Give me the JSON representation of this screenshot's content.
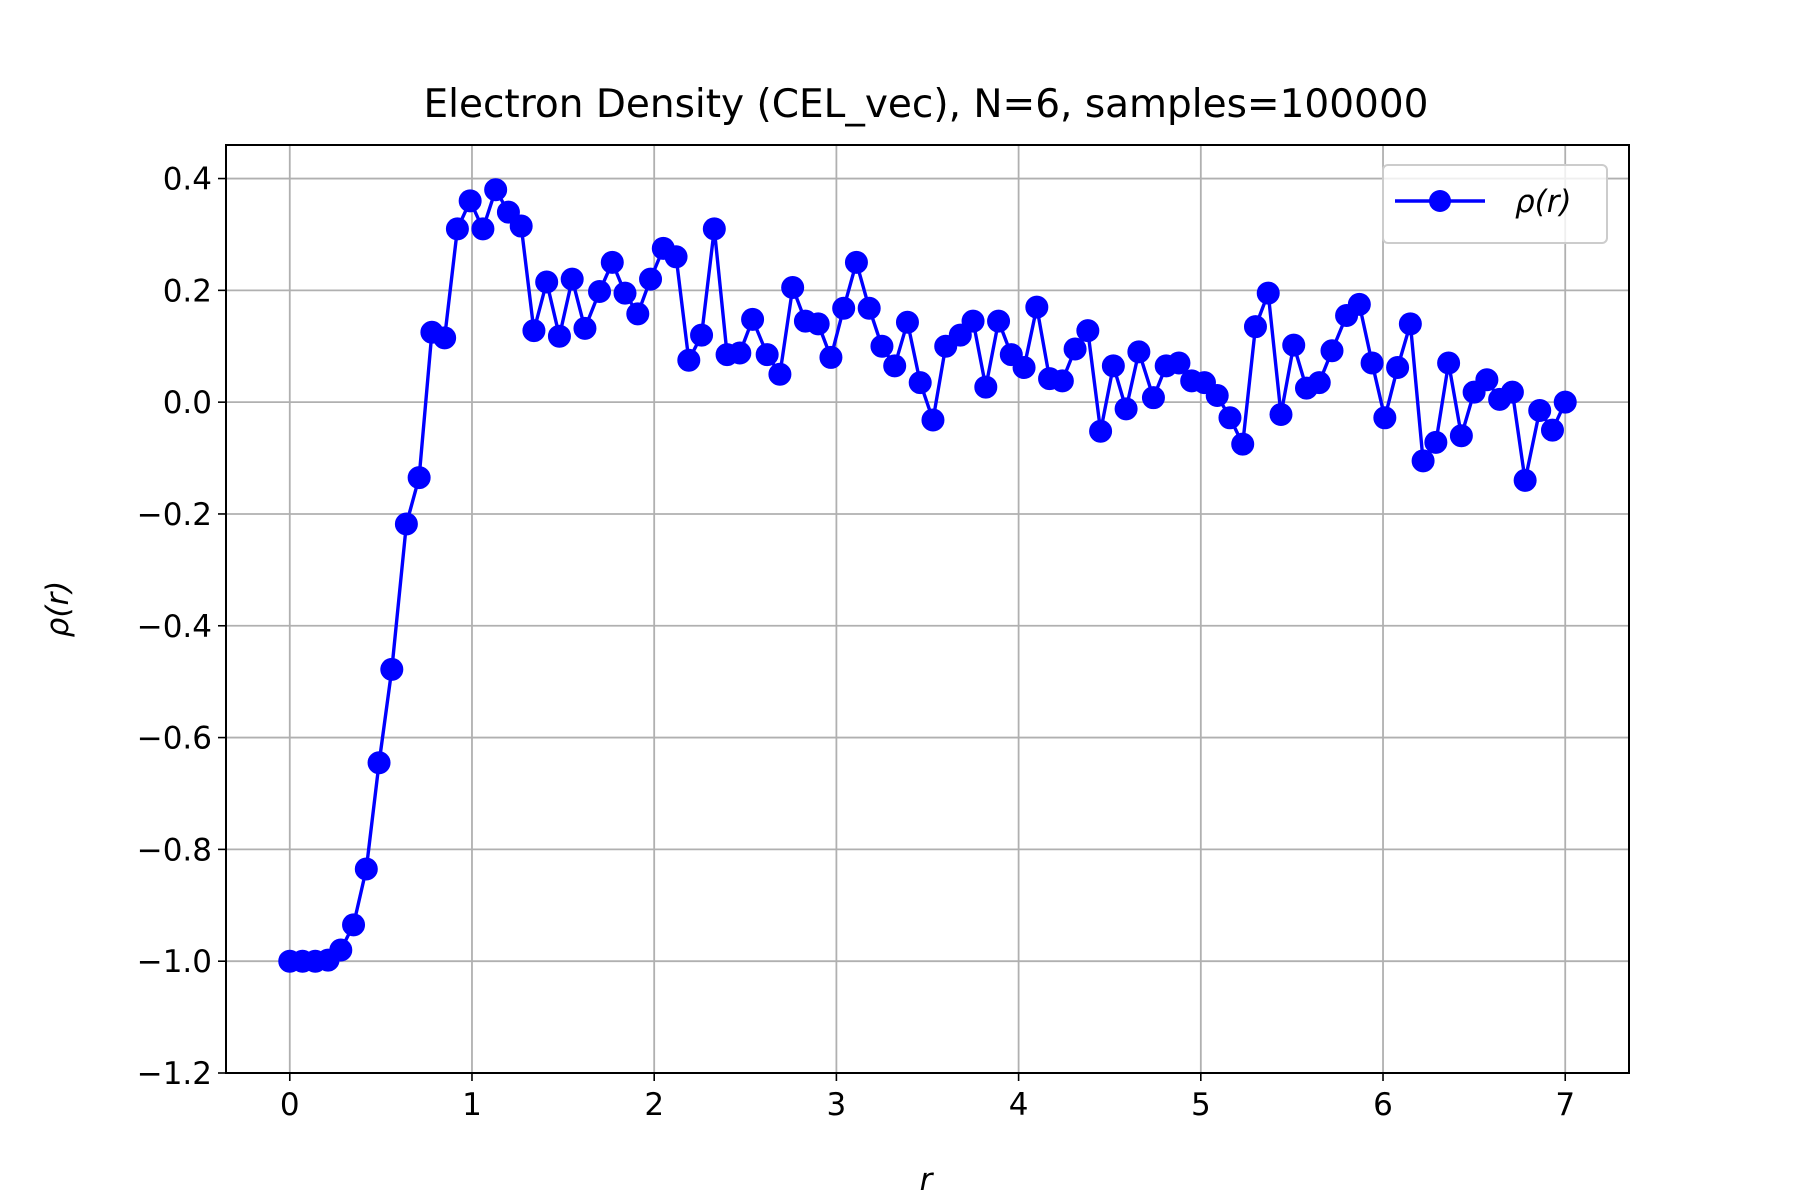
{
  "chart_data": {
    "type": "line",
    "title": "Electron Density (CEL_vec), N=6, samples=100000",
    "xlabel": "r",
    "ylabel": "ρ(r)",
    "xlim": [
      -0.35,
      7.35
    ],
    "ylim": [
      -1.2,
      0.46
    ],
    "xticks": [
      0,
      1,
      2,
      3,
      4,
      5,
      6,
      7
    ],
    "yticks": [
      -1.2,
      -1.0,
      -0.8,
      -0.6,
      -0.4,
      -0.2,
      0.0,
      0.2,
      0.4
    ],
    "xtick_labels": [
      "0",
      "1",
      "2",
      "3",
      "4",
      "5",
      "6",
      "7"
    ],
    "ytick_labels": [
      "−1.2",
      "−1.0",
      "−0.8",
      "−0.6",
      "−0.4",
      "−0.2",
      "0.0",
      "0.2",
      "0.4"
    ],
    "grid": true,
    "legend_position": "top-right",
    "color": "#0000ff",
    "series": [
      {
        "name": "ρ(r)",
        "x": [
          0.0,
          0.07,
          0.14,
          0.21,
          0.28,
          0.35,
          0.42,
          0.49,
          0.56,
          0.64,
          0.71,
          0.78,
          0.85,
          0.92,
          0.99,
          1.06,
          1.13,
          1.2,
          1.27,
          1.34,
          1.41,
          1.48,
          1.55,
          1.62,
          1.7,
          1.77,
          1.84,
          1.91,
          1.98,
          2.05,
          2.12,
          2.19,
          2.26,
          2.33,
          2.4,
          2.47,
          2.54,
          2.62,
          2.69,
          2.76,
          2.83,
          2.9,
          2.97,
          3.04,
          3.11,
          3.18,
          3.25,
          3.32,
          3.39,
          3.46,
          3.53,
          3.6,
          3.68,
          3.75,
          3.82,
          3.89,
          3.96,
          4.03,
          4.1,
          4.17,
          4.24,
          4.31,
          4.38,
          4.45,
          4.52,
          4.59,
          4.66,
          4.74,
          4.81,
          4.88,
          4.95,
          5.02,
          5.09,
          5.16,
          5.23,
          5.3,
          5.37,
          5.44,
          5.51,
          5.58,
          5.65,
          5.72,
          5.8,
          5.87,
          5.94,
          6.01,
          6.08,
          6.15,
          6.22,
          6.29,
          6.36,
          6.43,
          6.5,
          6.57,
          6.64,
          6.71,
          6.78,
          6.86,
          6.93,
          7.0
        ],
        "y": [
          -1.0,
          -1.0,
          -1.0,
          -0.998,
          -0.98,
          -0.935,
          -0.835,
          -0.645,
          -0.478,
          -0.218,
          -0.135,
          0.125,
          0.115,
          0.31,
          0.36,
          0.31,
          0.38,
          0.34,
          0.315,
          0.128,
          0.215,
          0.118,
          0.22,
          0.132,
          0.198,
          0.25,
          0.195,
          0.158,
          0.22,
          0.275,
          0.26,
          0.075,
          0.12,
          0.31,
          0.085,
          0.088,
          0.148,
          0.085,
          0.05,
          0.205,
          0.145,
          0.14,
          0.08,
          0.168,
          0.25,
          0.168,
          0.1,
          0.065,
          0.143,
          0.035,
          -0.032,
          0.1,
          0.12,
          0.145,
          0.027,
          0.145,
          0.085,
          0.062,
          0.17,
          0.042,
          0.038,
          0.095,
          0.128,
          -0.052,
          0.065,
          -0.012,
          0.09,
          0.008,
          0.065,
          0.07,
          0.038,
          0.035,
          0.012,
          -0.028,
          -0.075,
          0.135,
          0.195,
          -0.022,
          0.102,
          0.025,
          0.035,
          0.092,
          0.155,
          0.175,
          0.07,
          -0.028,
          0.062,
          0.14,
          -0.105,
          -0.072,
          0.07,
          -0.06,
          0.018,
          0.04,
          0.005,
          0.018,
          -0.14,
          -0.015,
          -0.05,
          0.0
        ]
      }
    ]
  }
}
